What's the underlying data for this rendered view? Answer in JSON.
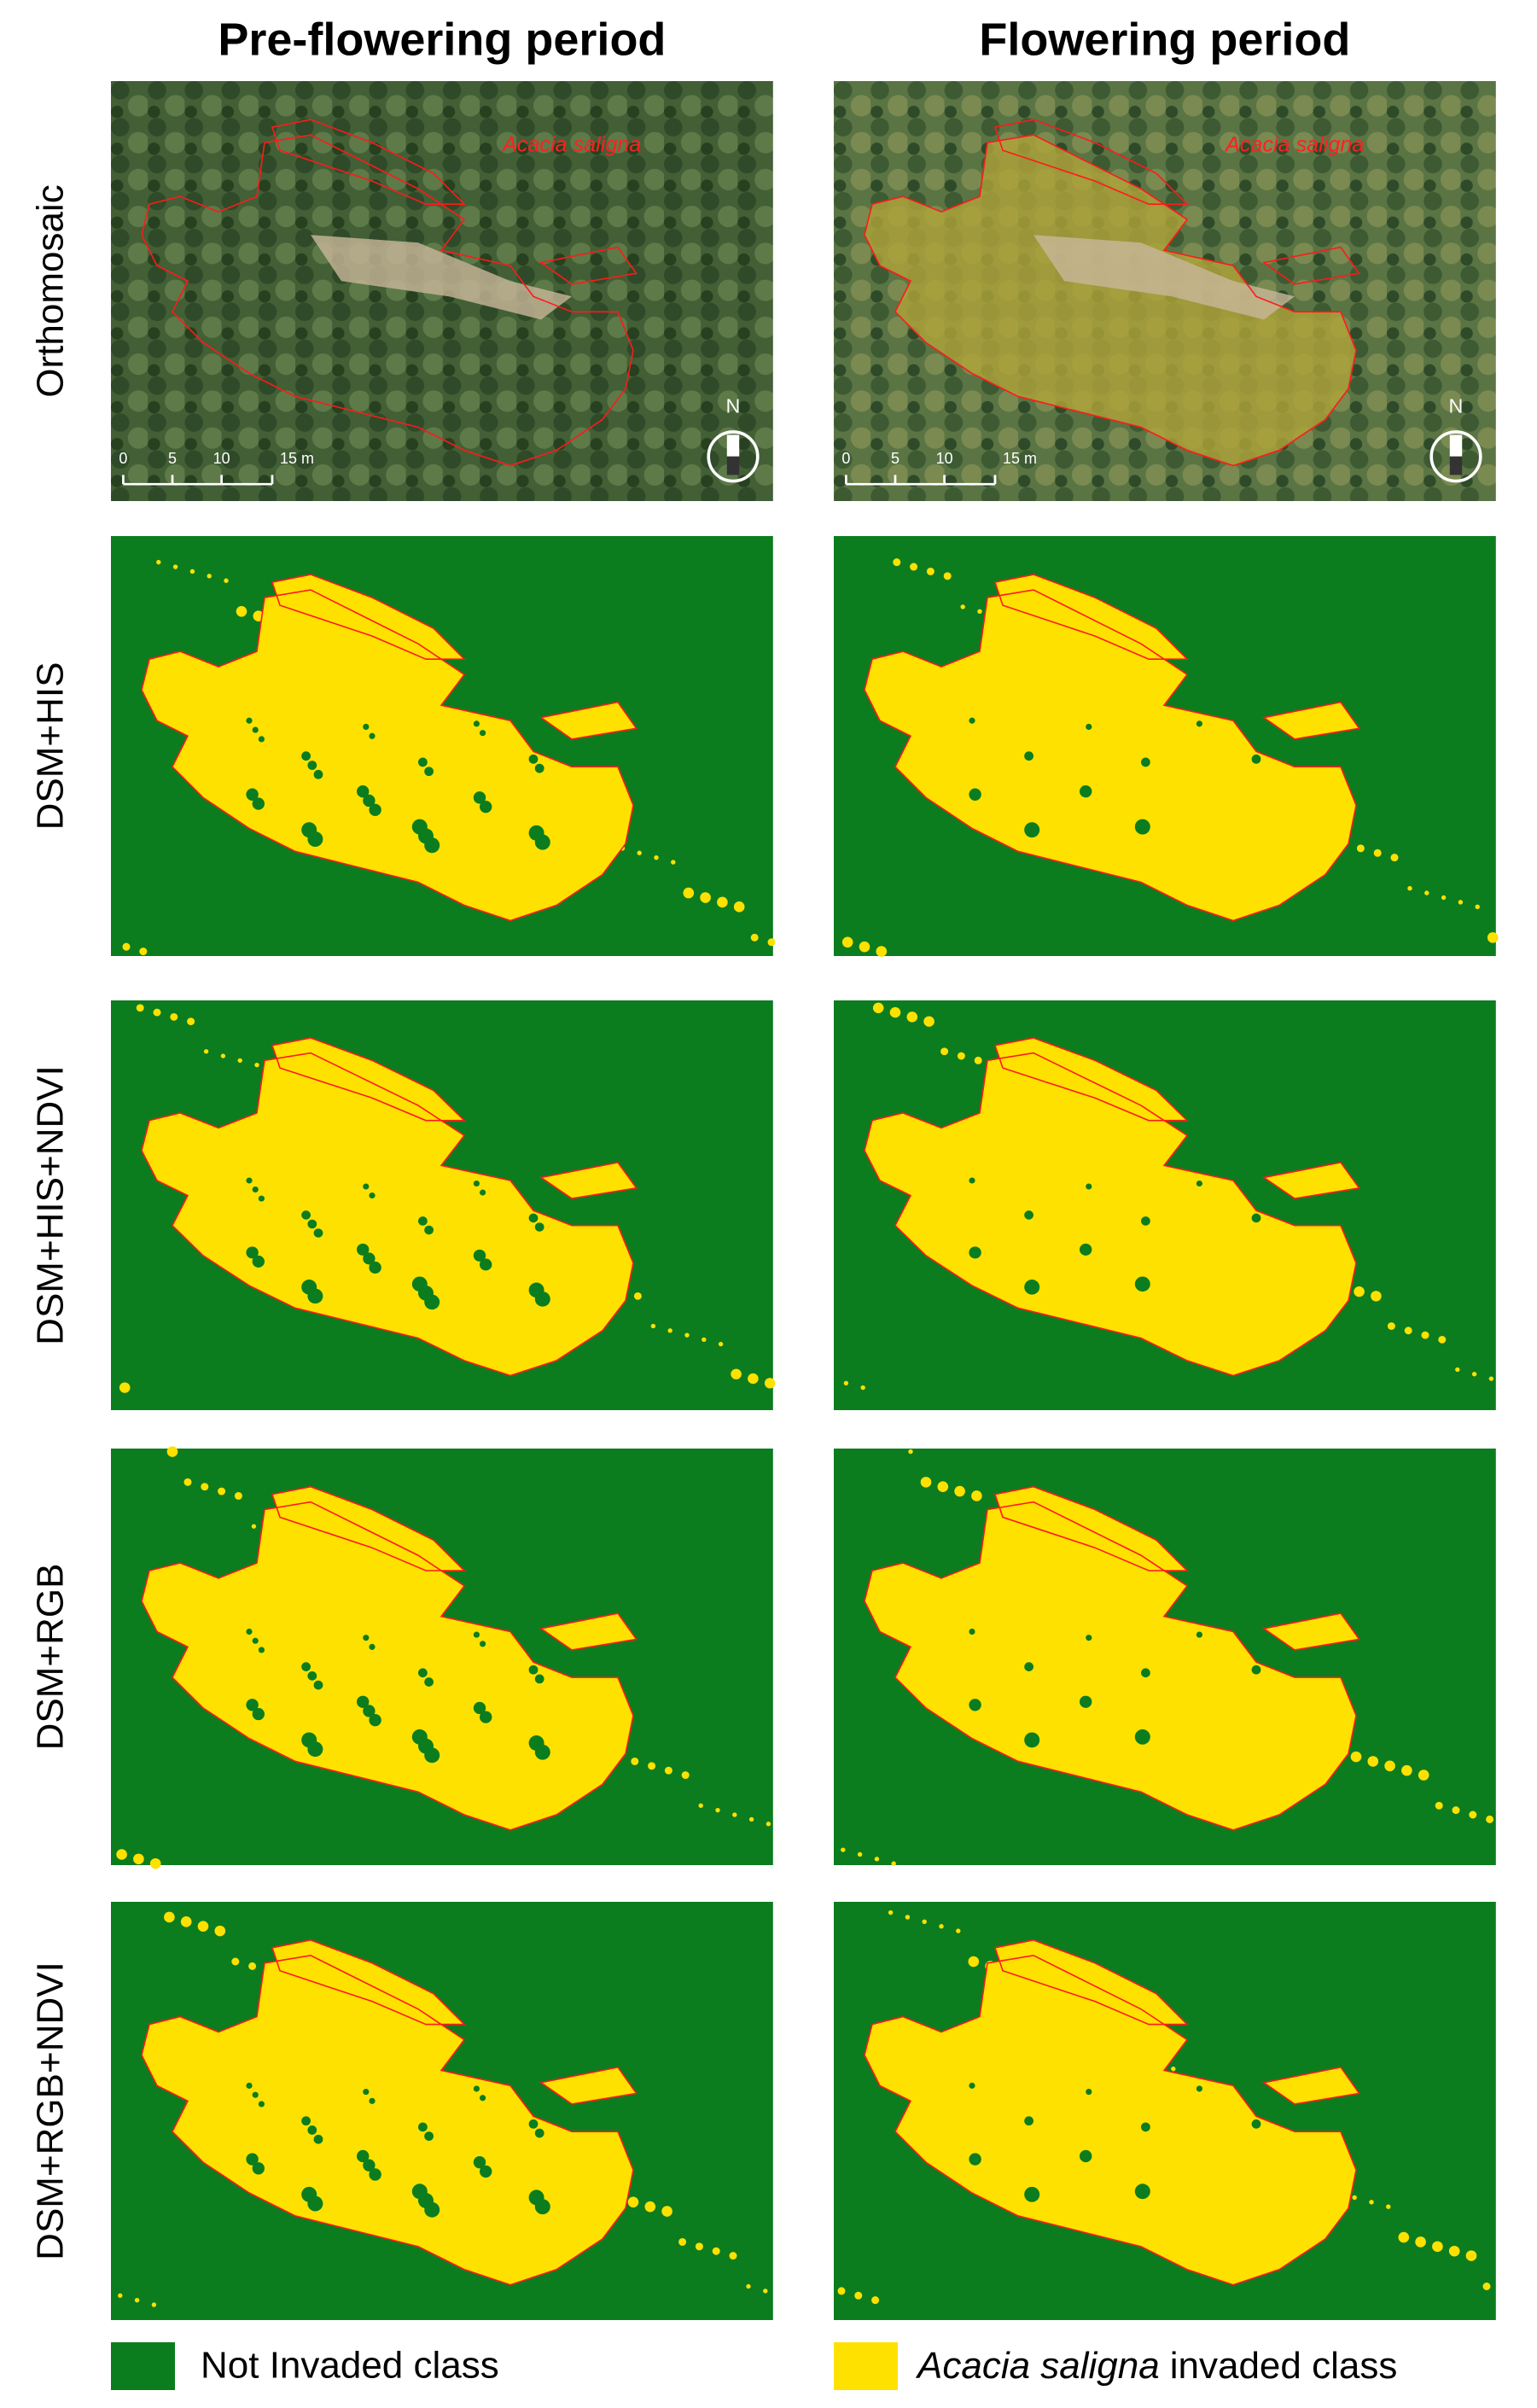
{
  "columns": [
    "Pre-flowering period",
    "Flowering period"
  ],
  "rows": [
    "Orthomosaic",
    "DSM+HIS",
    "DSM+HIS+NDVI",
    "DSM+RGB",
    "DSM+RGB+NDVI"
  ],
  "orthomosaic": {
    "species_label": "Acacia saligna",
    "scale_labels": [
      "0",
      "5",
      "10",
      "15 m"
    ],
    "north": "N"
  },
  "legend": [
    {
      "label": "Not Invaded class",
      "color": "#0b7d1f"
    },
    {
      "italic": "Acacia saligna",
      "label": "invaded class",
      "color": "#ffe100"
    }
  ]
}
